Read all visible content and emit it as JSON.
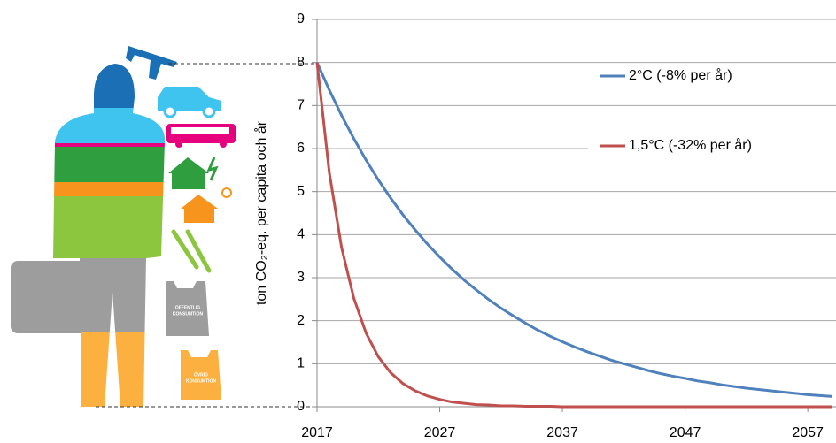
{
  "chart_data": {
    "type": "line",
    "y_label": "ton CO₂-eq. per capita och år",
    "x": [
      2017,
      2018,
      2019,
      2020,
      2021,
      2022,
      2023,
      2024,
      2025,
      2026,
      2027,
      2028,
      2029,
      2030,
      2031,
      2032,
      2033,
      2034,
      2035,
      2036,
      2037,
      2038,
      2039,
      2040,
      2041,
      2042,
      2043,
      2044,
      2045,
      2046,
      2047,
      2048,
      2049,
      2050,
      2051,
      2052,
      2053,
      2054,
      2055,
      2056,
      2057,
      2058,
      2059
    ],
    "series": [
      {
        "name": "2°C  (-8% per år)",
        "color": "#4f81bd",
        "values": [
          8,
          7.36,
          6.77,
          6.23,
          5.73,
          5.27,
          4.85,
          4.46,
          4.11,
          3.78,
          3.48,
          3.2,
          2.94,
          2.71,
          2.49,
          2.29,
          2.11,
          1.94,
          1.78,
          1.64,
          1.51,
          1.39,
          1.28,
          1.18,
          1.08,
          1.0,
          0.92,
          0.84,
          0.77,
          0.71,
          0.66,
          0.6,
          0.56,
          0.51,
          0.47,
          0.43,
          0.4,
          0.37,
          0.34,
          0.31,
          0.28,
          0.26,
          0.24
        ]
      },
      {
        "name": "1,5°C  (-32% per år)",
        "color": "#c0504d",
        "values": [
          8,
          5.44,
          3.7,
          2.52,
          1.71,
          1.16,
          0.79,
          0.54,
          0.37,
          0.25,
          0.17,
          0.11,
          0.08,
          0.05,
          0.04,
          0.02,
          0.02,
          0.01,
          0.01,
          0.01,
          0,
          0,
          0,
          0,
          0,
          0,
          0,
          0,
          0,
          0,
          0,
          0,
          0,
          0,
          0,
          0,
          0,
          0,
          0,
          0,
          0,
          0,
          0
        ]
      }
    ],
    "xlim": [
      2017,
      2059.3
    ],
    "xticks": [
      2017,
      2027,
      2037,
      2047,
      2057
    ],
    "ylim": [
      0,
      9
    ],
    "yticks": [
      0,
      1,
      2,
      3,
      4,
      5,
      6,
      7,
      8,
      9
    ],
    "grid": true,
    "legend": "upper right"
  },
  "illustration": {
    "public_bag": [
      "OFFENTLIG",
      "KONSUMTION"
    ],
    "private_bag": [
      "ÖVRIG",
      "KONSUMTION"
    ]
  }
}
